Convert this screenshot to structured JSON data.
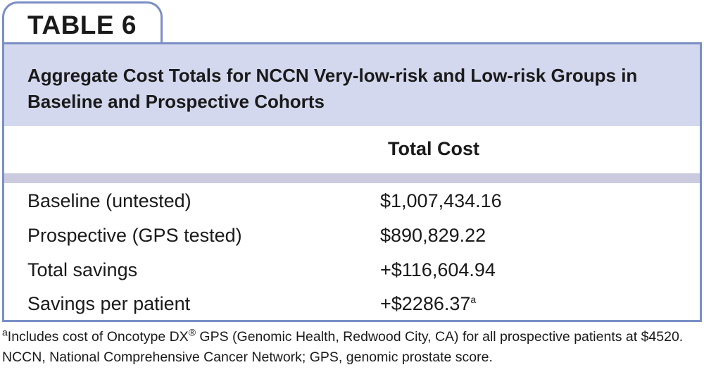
{
  "table_label": "TABLE 6",
  "title": "Aggregate Cost Totals for NCCN Very-low-risk and Low-risk Groups in Baseline and Prospective Cohorts",
  "column_header": "Total Cost",
  "rows": [
    {
      "label": "Baseline (untested)",
      "value": "$1,007,434.16",
      "note": ""
    },
    {
      "label": "Prospective (GPS tested)",
      "value": "$890,829.22",
      "note": ""
    },
    {
      "label": "Total savings",
      "value": "+$116,604.94",
      "note": ""
    },
    {
      "label": "Savings per patient",
      "value": "+$2286.37",
      "note": "a"
    }
  ],
  "footnotes": {
    "a_mark": "a",
    "a_text_1": "Includes cost of Oncotype DX",
    "a_reg": "®",
    "a_text_2": " GPS (Genomic Health, Redwood City, CA) for all prospective patients at $4520.",
    "abbreviations": "NCCN, National Comprehensive Cancer Network; GPS, genomic prostate score."
  },
  "colors": {
    "border": "#7b8fc5",
    "header_bg": "#d3d8ee",
    "band": "#cbcbe0"
  }
}
